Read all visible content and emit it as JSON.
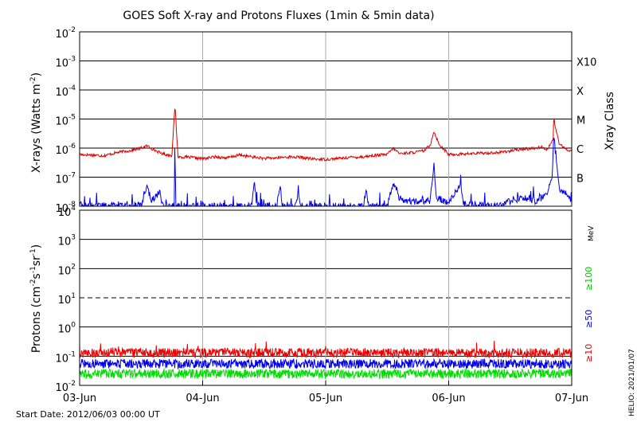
{
  "chart_data": [
    {
      "type": "line",
      "title": "GOES Soft X-ray and Protons Fluxes   (1min & 5min data)",
      "ylabel": "X-rays (Watts m",
      "ylabel_exp": "-2",
      "ylabel_end": ")",
      "yscale": "log",
      "ylim": [
        1e-08,
        0.01
      ],
      "y_ticks": [
        {
          "base": "10",
          "exp": "-8"
        },
        {
          "base": "10",
          "exp": "-7"
        },
        {
          "base": "10",
          "exp": "-6"
        },
        {
          "base": "10",
          "exp": "-5"
        },
        {
          "base": "10",
          "exp": "-4"
        },
        {
          "base": "10",
          "exp": "-3"
        },
        {
          "base": "10",
          "exp": "-2"
        }
      ],
      "x_ticks": [
        "03-Jun",
        "04-Jun",
        "05-Jun",
        "06-Jun",
        "07-Jun"
      ],
      "xray_classes": [
        {
          "label": "B",
          "value": 1e-07
        },
        {
          "label": "C",
          "value": 1e-06
        },
        {
          "label": "M",
          "value": 1e-05
        },
        {
          "label": "X",
          "value": 0.0001
        },
        {
          "label": "X10",
          "value": 0.001
        }
      ],
      "right_label": "Xray Class",
      "series": [
        {
          "color": "#dd0000",
          "points": [
            [
              0.0,
              6e-07
            ],
            [
              0.1,
              5.8e-07
            ],
            [
              0.2,
              5.5e-07
            ],
            [
              0.3,
              7e-07
            ],
            [
              0.4,
              8e-07
            ],
            [
              0.5,
              1e-06
            ],
            [
              0.55,
              1.2e-06
            ],
            [
              0.6,
              9e-07
            ],
            [
              0.65,
              7e-07
            ],
            [
              0.7,
              6e-07
            ],
            [
              0.75,
              5.6e-07
            ],
            [
              0.775,
              3e-05
            ],
            [
              0.8,
              5e-07
            ],
            [
              0.9,
              4.8e-07
            ],
            [
              1.0,
              4.3e-07
            ],
            [
              1.1,
              5e-07
            ],
            [
              1.2,
              4.6e-07
            ],
            [
              1.3,
              5.8e-07
            ],
            [
              1.4,
              5e-07
            ],
            [
              1.5,
              4.4e-07
            ],
            [
              1.6,
              4.6e-07
            ],
            [
              1.7,
              5e-07
            ],
            [
              1.8,
              4.8e-07
            ],
            [
              1.9,
              4.2e-07
            ],
            [
              2.0,
              4.1e-07
            ],
            [
              2.1,
              4.4e-07
            ],
            [
              2.2,
              4.8e-07
            ],
            [
              2.3,
              5e-07
            ],
            [
              2.4,
              5.6e-07
            ],
            [
              2.5,
              6e-07
            ],
            [
              2.55,
              1e-06
            ],
            [
              2.6,
              6.5e-07
            ],
            [
              2.7,
              7e-07
            ],
            [
              2.8,
              8e-07
            ],
            [
              2.85,
              1.3e-06
            ],
            [
              2.88,
              3.8e-06
            ],
            [
              2.92,
              1.4e-06
            ],
            [
              3.0,
              6e-07
            ],
            [
              3.1,
              6.2e-07
            ],
            [
              3.2,
              6.5e-07
            ],
            [
              3.3,
              6.8e-07
            ],
            [
              3.4,
              7e-07
            ],
            [
              3.5,
              8e-07
            ],
            [
              3.6,
              9e-07
            ],
            [
              3.7,
              1e-06
            ],
            [
              3.75,
              1.1e-06
            ],
            [
              3.8,
              9e-07
            ],
            [
              3.85,
              2e-06
            ],
            [
              3.855,
              1.9e-05
            ],
            [
              3.86,
              7e-06
            ],
            [
              3.88,
              3e-06
            ],
            [
              3.9,
              1.4e-06
            ],
            [
              3.95,
              9e-07
            ],
            [
              4.0,
              8e-07
            ]
          ]
        },
        {
          "color": "#0000ee",
          "points": [
            [
              0.0,
              1.2e-08
            ],
            [
              0.05,
              1e-08
            ],
            [
              0.5,
              1.1e-08
            ],
            [
              0.55,
              6e-08
            ],
            [
              0.58,
              1.4e-08
            ],
            [
              0.65,
              3e-08
            ],
            [
              0.68,
              1e-08
            ],
            [
              0.77,
              1e-08
            ],
            [
              0.775,
              5e-06
            ],
            [
              0.78,
              1e-08
            ],
            [
              1.0,
              1e-08
            ],
            [
              1.4,
              1e-08
            ],
            [
              1.42,
              7e-08
            ],
            [
              1.44,
              1e-08
            ],
            [
              1.6,
              1e-08
            ],
            [
              1.63,
              4e-08
            ],
            [
              1.65,
              1e-08
            ],
            [
              1.75,
              1e-08
            ],
            [
              1.78,
              3e-08
            ],
            [
              1.8,
              1e-08
            ],
            [
              2.0,
              1e-08
            ],
            [
              2.3,
              1e-08
            ],
            [
              2.33,
              3e-08
            ],
            [
              2.35,
              1e-08
            ],
            [
              2.5,
              1e-08
            ],
            [
              2.55,
              6e-08
            ],
            [
              2.6,
              1.8e-08
            ],
            [
              2.7,
              1.4e-08
            ],
            [
              2.85,
              1.6e-08
            ],
            [
              2.88,
              3e-07
            ],
            [
              2.9,
              2e-08
            ],
            [
              3.0,
              1.2e-08
            ],
            [
              3.1,
              6e-08
            ],
            [
              3.12,
              1.2e-08
            ],
            [
              3.4,
              1e-08
            ],
            [
              3.5,
              1.5e-08
            ],
            [
              3.6,
              2e-08
            ],
            [
              3.7,
              1.5e-08
            ],
            [
              3.8,
              2.5e-08
            ],
            [
              3.84,
              1e-07
            ],
            [
              3.855,
              3e-06
            ],
            [
              3.87,
              5e-07
            ],
            [
              3.9,
              4e-08
            ],
            [
              3.95,
              3e-08
            ],
            [
              4.0,
              1.5e-08
            ]
          ]
        }
      ]
    },
    {
      "type": "line",
      "ylabel": "Protons (cm",
      "ylabel_exp1": "-2",
      "ylabel_mid": "s",
      "ylabel_exp2": "-1",
      "ylabel_mid2": "sr",
      "ylabel_exp3": "-1",
      "ylabel_end": ")",
      "yscale": "log",
      "ylim": [
        0.01,
        10000
      ],
      "y_ticks": [
        {
          "base": "10",
          "exp": "-2"
        },
        {
          "base": "10",
          "exp": "-1"
        },
        {
          "base": "10",
          "exp": "0"
        },
        {
          "base": "10",
          "exp": "1"
        },
        {
          "base": "10",
          "exp": "2"
        },
        {
          "base": "10",
          "exp": "3"
        },
        {
          "base": "10",
          "exp": "4"
        }
      ],
      "threshold": 10,
      "x_ticks": [
        "03-Jun",
        "04-Jun",
        "05-Jun",
        "06-Jun",
        "07-Jun"
      ],
      "energy_unit": "MeV",
      "series": [
        {
          "name": "≥10",
          "color": "#ee0000",
          "level": 0.13
        },
        {
          "name": "≥50",
          "color": "#0000ee",
          "level": 0.055
        },
        {
          "name": "≥100",
          "color": "#00dd00",
          "level": 0.025
        }
      ]
    }
  ],
  "footer": {
    "start_date": "Start Date: 2012/06/03 00:00 UT",
    "credit": "HELIO: 2021/01/07"
  }
}
